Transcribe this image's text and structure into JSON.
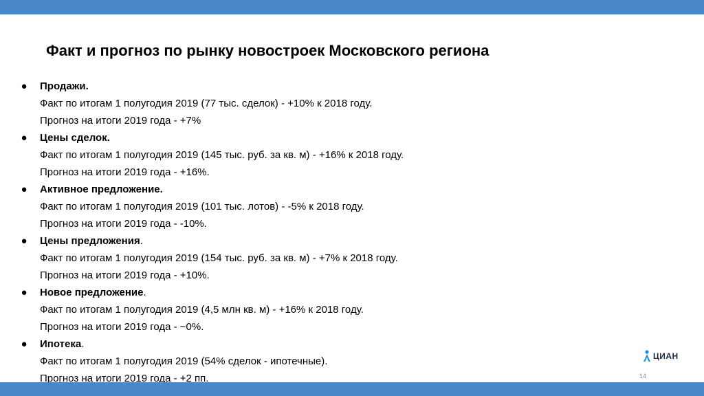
{
  "slide": {
    "title": "Факт и прогноз по рынку новостроек Московского региона",
    "page_number": "14",
    "logo_text": "ЦИАН",
    "colors": {
      "bar": "#4a86c8",
      "text": "#000000",
      "page_number": "#8a8a8a"
    }
  },
  "sections": [
    {
      "bullet": "●",
      "heading": "Продажи.",
      "heading_suffix": "",
      "fact": "Факт по итогам 1 полугодия 2019 (77 тыс. сделок) - +10% к 2018 году.",
      "forecast": "Прогноз на итоги 2019 года - +7%"
    },
    {
      "bullet": "●",
      "heading": "Цены сделок.",
      "heading_suffix": "",
      "fact": "Факт по итогам 1 полугодия 2019 (145 тыс. руб. за кв. м) - +16% к 2018 году.",
      "forecast": "Прогноз на итоги 2019 года - +16%."
    },
    {
      "bullet": "●",
      "heading": "Активное предложение.",
      "heading_suffix": "",
      "fact": "Факт по итогам 1 полугодия 2019 (101 тыс. лотов) - -5% к 2018 году.",
      "forecast": "Прогноз на итоги 2019 года - -10%."
    },
    {
      "bullet": "●",
      "heading": "Цены предложения",
      "heading_suffix": ".",
      "fact": "Факт по итогам 1 полугодия 2019 (154 тыс. руб. за кв. м) - +7% к 2018 году.",
      "forecast": "Прогноз на итоги 2019 года - +10%."
    },
    {
      "bullet": "●",
      "heading": "Новое предложение",
      "heading_suffix": ".",
      "fact": "Факт по итогам 1 полугодия 2019 (4,5 млн кв. м) - +16% к 2018 году.",
      "forecast": "Прогноз на итоги 2019 года - ~0%."
    },
    {
      "bullet": "●",
      "heading": "Ипотека",
      "heading_suffix": ".",
      "fact": "Факт по итогам 1 полугодия 2019 (54% сделок - ипотечные).",
      "forecast": "Прогноз на итоги 2019 года - +2 пп."
    }
  ]
}
